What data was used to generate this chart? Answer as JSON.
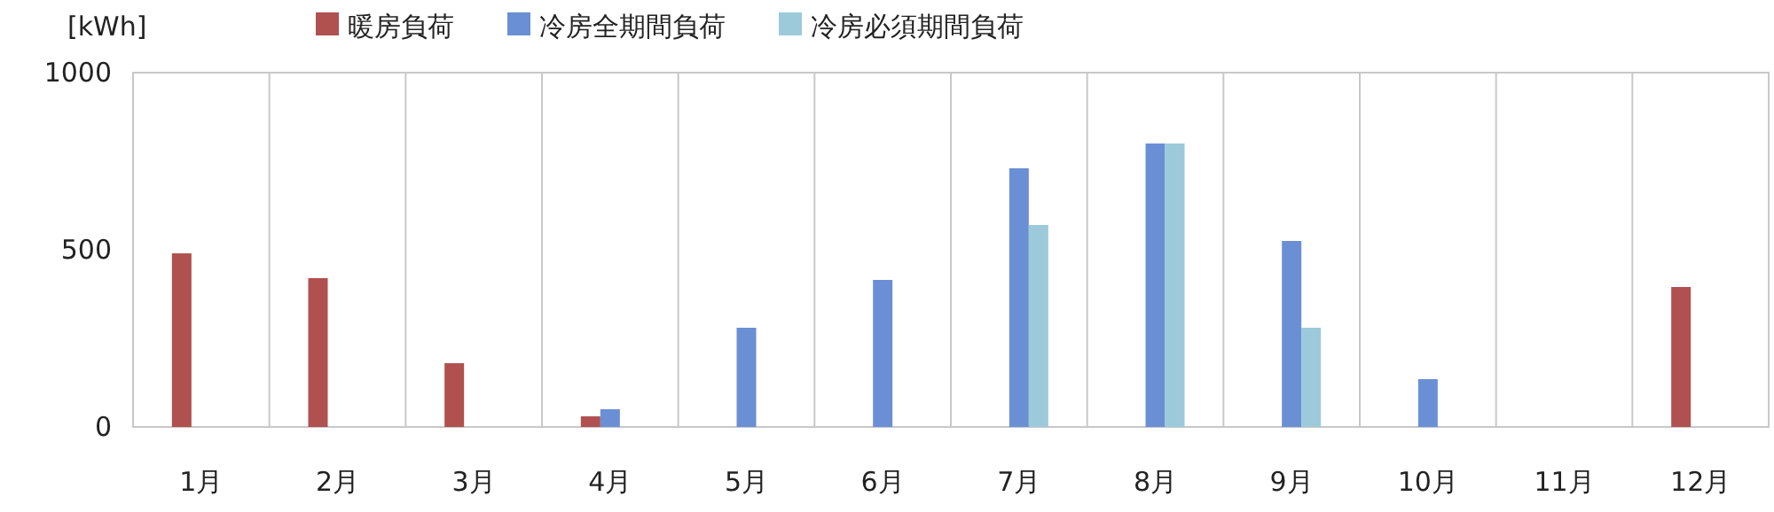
{
  "chart_data": {
    "type": "bar",
    "ylabel": "[kWh]",
    "categories": [
      "1月",
      "2月",
      "3月",
      "4月",
      "5月",
      "6月",
      "7月",
      "8月",
      "9月",
      "10月",
      "11月",
      "12月"
    ],
    "series": [
      {
        "name": "暖房負荷",
        "color": "#b0504f",
        "values": [
          490,
          420,
          180,
          30,
          null,
          null,
          null,
          null,
          null,
          null,
          null,
          395
        ]
      },
      {
        "name": "冷房全期間負荷",
        "color": "#6a8fd4",
        "values": [
          null,
          null,
          null,
          50,
          280,
          415,
          730,
          800,
          525,
          135,
          null,
          null
        ]
      },
      {
        "name": "冷房必須期間負荷",
        "color": "#9ccadb",
        "values": [
          null,
          null,
          null,
          null,
          null,
          null,
          570,
          800,
          280,
          null,
          null,
          null
        ]
      }
    ],
    "ylim": [
      0,
      1000
    ],
    "yticks": [
      0,
      500,
      1000
    ],
    "grid": "x",
    "legend": "top left"
  }
}
